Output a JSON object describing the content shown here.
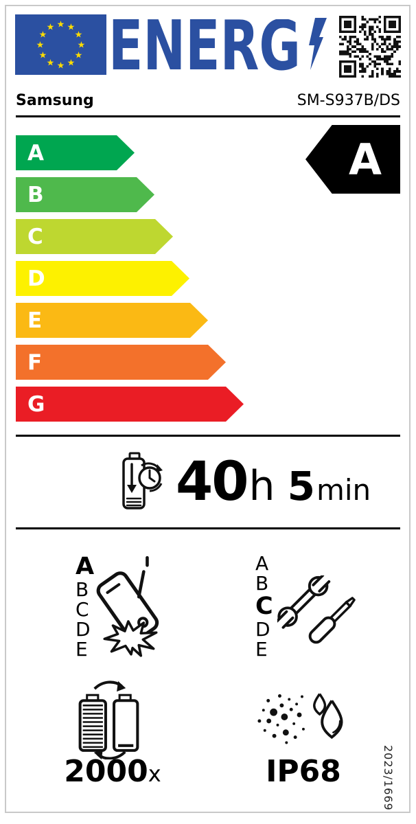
{
  "colors": {
    "brand_blue": "#2b50a1",
    "star_yellow": "#ffdd00",
    "border_gray": "#c9c9c9",
    "indicator_black": "#000000"
  },
  "header": {
    "energy_logo_text": "ENERG"
  },
  "supplier": {
    "brand": "Samsung",
    "model": "SM-S937B/DS"
  },
  "energy_efficiency": {
    "rating": "A",
    "scale": [
      {
        "label": "A",
        "color": "#00a650"
      },
      {
        "label": "B",
        "color": "#4fb94c"
      },
      {
        "label": "C",
        "color": "#bed730"
      },
      {
        "label": "D",
        "color": "#fdf100"
      },
      {
        "label": "E",
        "color": "#fbb914"
      },
      {
        "label": "F",
        "color": "#f3712b"
      },
      {
        "label": "G",
        "color": "#ea1d25"
      }
    ]
  },
  "battery_endurance": {
    "hours": "40",
    "hours_unit": "h",
    "minutes": "5",
    "minutes_unit": "min"
  },
  "free_fall_reliability": {
    "rating": "A",
    "scale": [
      "A",
      "B",
      "C",
      "D",
      "E"
    ]
  },
  "repairability": {
    "rating": "C",
    "scale": [
      "A",
      "B",
      "C",
      "D",
      "E"
    ]
  },
  "battery_cycle_endurance": {
    "value": "2000",
    "unit": "x"
  },
  "ingress_protection": {
    "rating": "IP68"
  },
  "regulation_number": "2023/1669",
  "icons": [
    "eu-flag",
    "lightning-bolt-icon",
    "qr-code",
    "battery-endurance-icon",
    "free-fall-icon",
    "repairability-icon",
    "battery-cycle-icon",
    "ingress-protection-icon"
  ]
}
